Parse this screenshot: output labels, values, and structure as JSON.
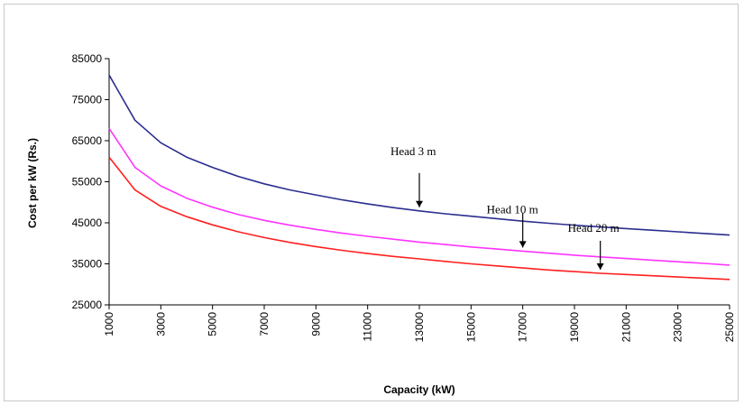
{
  "chart_data": {
    "type": "line",
    "title": "",
    "xlabel": "Capacity (kW)",
    "ylabel": "Cost per kW (Rs.)",
    "xlim": [
      1000,
      25000
    ],
    "ylim": [
      25000,
      85000
    ],
    "x_ticks": [
      "1000",
      "3000",
      "5000",
      "7000",
      "9000",
      "11000",
      "13000",
      "15000",
      "17000",
      "19000",
      "21000",
      "23000",
      "25000"
    ],
    "y_ticks": [
      "25000",
      "35000",
      "45000",
      "55000",
      "65000",
      "75000",
      "85000"
    ],
    "grid": false,
    "x": [
      1000,
      2000,
      3000,
      4000,
      5000,
      6000,
      7000,
      8000,
      9000,
      10000,
      11000,
      12000,
      13000,
      14000,
      15000,
      16000,
      17000,
      18000,
      19000,
      20000,
      21000,
      22000,
      23000,
      24000,
      25000
    ],
    "series": [
      {
        "name": "Head 3 m",
        "color": "#2b2d8f",
        "values": [
          81000,
          70000,
          64500,
          61000,
          58500,
          56300,
          54500,
          53000,
          51800,
          50600,
          49600,
          48700,
          47900,
          47200,
          46600,
          46000,
          45400,
          44900,
          44400,
          44000,
          43600,
          43200,
          42800,
          42400,
          42000
        ]
      },
      {
        "name": "Head 10 m",
        "color": "#ff33ff",
        "values": [
          68000,
          58500,
          54000,
          51000,
          48800,
          47000,
          45600,
          44400,
          43400,
          42500,
          41700,
          41000,
          40300,
          39700,
          39100,
          38600,
          38100,
          37600,
          37100,
          36700,
          36300,
          35900,
          35500,
          35100,
          34700
        ]
      },
      {
        "name": "Head 20 m",
        "color": "#ff2020",
        "values": [
          61000,
          53000,
          49000,
          46500,
          44500,
          42800,
          41400,
          40200,
          39200,
          38300,
          37500,
          36800,
          36200,
          35600,
          35000,
          34500,
          34000,
          33500,
          33100,
          32700,
          32400,
          32100,
          31800,
          31500,
          31200
        ]
      }
    ],
    "annotations": [
      {
        "text": "Head 3 m",
        "x": 13000,
        "target_y": 47900
      },
      {
        "text": "Head 10 m",
        "x": 17000,
        "target_y": 38100
      },
      {
        "text": "Head 20 m",
        "x": 20000,
        "target_y": 32700
      }
    ]
  }
}
